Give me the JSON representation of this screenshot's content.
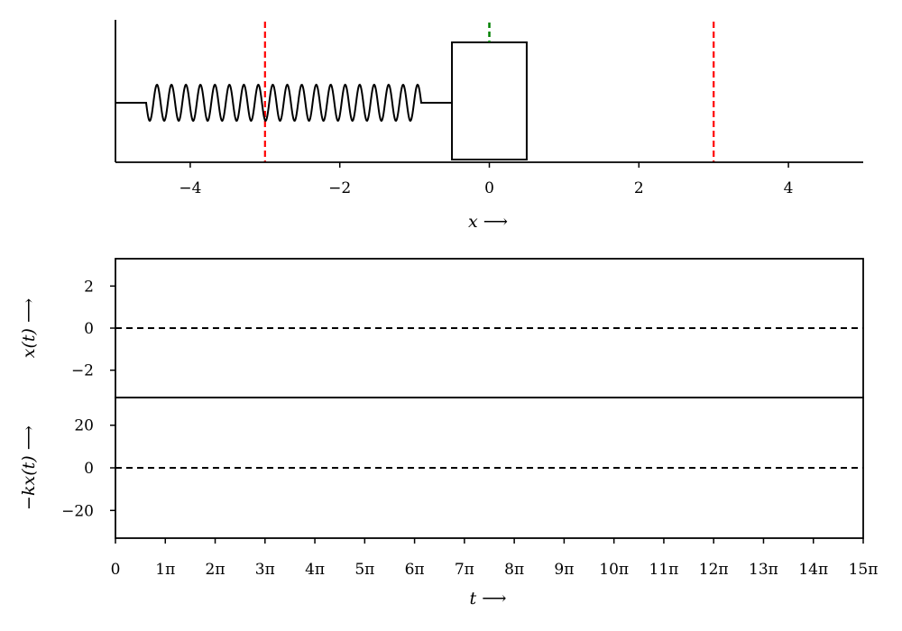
{
  "chart_data": [
    {
      "type": "scatter",
      "panel": "spring-mass-diagram",
      "xlabel": "x ⟶",
      "xlim": [
        -5,
        5
      ],
      "xticks": [
        -4,
        -2,
        0,
        2,
        4
      ],
      "xtick_labels": [
        "−4",
        "−2",
        "0",
        "2",
        "4"
      ],
      "mass_block": {
        "x_left": -0.5,
        "x_right": 0.5,
        "color": "#000000"
      },
      "spring": {
        "x_start": -5,
        "x_end": -0.5,
        "coils": 19,
        "color": "#000000"
      },
      "equilibrium_marker": {
        "x": 0,
        "color": "#008000",
        "style": "dashed"
      },
      "amplitude_lines": {
        "x": [
          -3,
          3
        ],
        "color": "#ff0000",
        "style": "dashed"
      }
    },
    {
      "type": "line",
      "panel": "displacement",
      "ylabel": "x(t) ⟶",
      "ylim": [
        -3.3,
        3.3
      ],
      "yticks": [
        2,
        0,
        -2
      ],
      "ytick_labels": [
        "2",
        "0",
        "−2"
      ],
      "xlim": [
        0,
        15
      ],
      "reference_line": {
        "y": 0,
        "style": "dashed",
        "color": "#000000"
      },
      "series": []
    },
    {
      "type": "line",
      "panel": "force",
      "ylabel": "−kx(t) ⟶",
      "xlabel": "t ⟶",
      "ylim": [
        -33,
        33
      ],
      "yticks": [
        20,
        0,
        -20
      ],
      "ytick_labels": [
        "20",
        "0",
        "−20"
      ],
      "xlim": [
        0,
        15
      ],
      "x_unit": "π",
      "xticks": [
        0,
        1,
        2,
        3,
        4,
        5,
        6,
        7,
        8,
        9,
        10,
        11,
        12,
        13,
        14,
        15
      ],
      "xtick_labels": [
        "0",
        "1π",
        "2π",
        "3π",
        "4π",
        "5π",
        "6π",
        "7π",
        "8π",
        "9π",
        "10π",
        "11π",
        "12π",
        "13π",
        "14π",
        "15π"
      ],
      "reference_line": {
        "y": 0,
        "style": "dashed",
        "color": "#000000"
      },
      "series": []
    }
  ]
}
